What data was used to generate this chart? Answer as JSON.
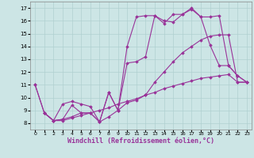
{
  "background_color": "#cce5e5",
  "grid_color": "#b0d0d0",
  "line_color": "#993399",
  "xlabel": "Windchill (Refroidissement éolien,°C)",
  "xlabel_fontsize": 6,
  "xlim": [
    -0.5,
    23.5
  ],
  "ylim": [
    7.5,
    17.5
  ],
  "yticks": [
    8,
    9,
    10,
    11,
    12,
    13,
    14,
    15,
    16,
    17
  ],
  "xticks": [
    0,
    1,
    2,
    3,
    4,
    5,
    6,
    7,
    8,
    9,
    10,
    11,
    12,
    13,
    14,
    15,
    16,
    17,
    18,
    19,
    20,
    21,
    22,
    23
  ],
  "series": [
    {
      "x": [
        0,
        1,
        2,
        3,
        4,
        5,
        6,
        7,
        8,
        9,
        10,
        11,
        12,
        13,
        14,
        15,
        16,
        17,
        18,
        19,
        20,
        21,
        22,
        23
      ],
      "y": [
        11.0,
        8.8,
        8.2,
        9.5,
        9.7,
        9.5,
        9.3,
        8.1,
        10.4,
        9.0,
        14.0,
        16.3,
        16.4,
        16.4,
        15.8,
        16.5,
        16.5,
        17.0,
        16.3,
        16.3,
        16.4,
        12.5,
        11.7,
        11.2
      ]
    },
    {
      "x": [
        0,
        1,
        2,
        3,
        4,
        5,
        6,
        7,
        8,
        9,
        10,
        11,
        12,
        13,
        14,
        15,
        16,
        17,
        18,
        19,
        20,
        21,
        22,
        23
      ],
      "y": [
        11.0,
        8.8,
        8.2,
        8.3,
        9.4,
        8.8,
        8.8,
        8.1,
        10.4,
        9.0,
        12.7,
        12.8,
        13.2,
        16.4,
        16.0,
        15.9,
        16.5,
        16.9,
        16.3,
        14.1,
        12.5,
        12.5,
        11.7,
        11.2
      ]
    },
    {
      "x": [
        1,
        2,
        3,
        4,
        5,
        6,
        7,
        8,
        9,
        10,
        11,
        12,
        13,
        14,
        15,
        16,
        17,
        18,
        19,
        20,
        21,
        22,
        23
      ],
      "y": [
        8.8,
        8.2,
        8.3,
        8.5,
        8.8,
        8.8,
        8.1,
        8.5,
        9.0,
        9.6,
        9.8,
        10.2,
        11.2,
        12.0,
        12.8,
        13.5,
        14.0,
        14.5,
        14.8,
        14.9,
        14.9,
        11.2,
        11.2
      ]
    },
    {
      "x": [
        1,
        2,
        3,
        4,
        5,
        6,
        7,
        8,
        9,
        10,
        11,
        12,
        13,
        14,
        15,
        16,
        17,
        18,
        19,
        20,
        21,
        22,
        23
      ],
      "y": [
        8.8,
        8.2,
        8.2,
        8.4,
        8.6,
        8.8,
        9.0,
        9.2,
        9.5,
        9.7,
        9.9,
        10.2,
        10.4,
        10.7,
        10.9,
        11.1,
        11.3,
        11.5,
        11.6,
        11.7,
        11.8,
        11.2,
        11.2
      ]
    }
  ],
  "marker": "D",
  "markersize": 1.8,
  "linewidth": 0.8
}
